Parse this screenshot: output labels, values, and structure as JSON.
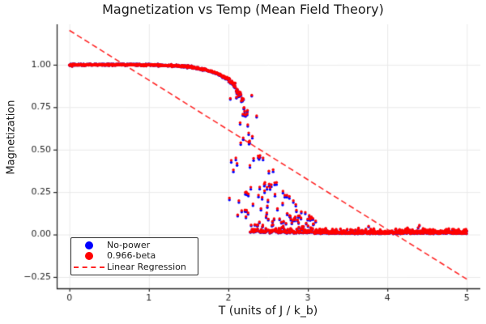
{
  "chart_data": {
    "type": "scatter",
    "title": "Magnetization vs Temp (Mean Field Theory)",
    "xlabel": "T (units of J / k_b)",
    "ylabel": "Magnetization",
    "xlim": [
      -0.16,
      5.17
    ],
    "ylim": [
      -0.317,
      1.238
    ],
    "grid": true,
    "grid_color": "#e9e9e9",
    "spine_color": "#262626",
    "tick_label_color": "#262626",
    "xticks": [
      {
        "v": 0,
        "label": "0"
      },
      {
        "v": 1,
        "label": "1"
      },
      {
        "v": 2,
        "label": "2"
      },
      {
        "v": 3,
        "label": "3"
      },
      {
        "v": 4,
        "label": "4"
      },
      {
        "v": 5,
        "label": "5"
      }
    ],
    "yticks": [
      {
        "v": -0.25,
        "label": "−0.25"
      },
      {
        "v": 0.0,
        "label": "0.00"
      },
      {
        "v": 0.25,
        "label": "0.25"
      },
      {
        "v": 0.5,
        "label": "0.50"
      },
      {
        "v": 0.75,
        "label": "0.75"
      },
      {
        "v": 1.0,
        "label": "1.00"
      }
    ],
    "series": [
      {
        "name": "No-power",
        "color": "#0000ff",
        "marker": "circle",
        "power": 1.0
      },
      {
        "name": "0.966-beta",
        "color": "#ff0000",
        "marker": "circle",
        "power": 0.966,
        "derived_from": "No-power"
      }
    ],
    "regression": {
      "label": "Linear Regression",
      "color": "#ff0000",
      "style": "dashed",
      "slope": -0.293,
      "intercept": 1.202,
      "x_range": [
        0,
        5
      ],
      "endpoints": [
        [
          0,
          1.202
        ],
        [
          5,
          -0.263
        ]
      ]
    },
    "model": {
      "t_min": 0,
      "t_max": 5,
      "n_points": 1300,
      "t_c": 2.269,
      "beta_exponent": 0.125,
      "seed": 42,
      "flat_noise_sd": 0.0032,
      "transition_start": 1.9,
      "excursion_prob": 0.5,
      "excursion_pow": 1.6,
      "envelope_amp": 0.95,
      "envelope_tau": 0.33,
      "bottom_cluster_frac": 0.55,
      "tail_start": 3.1,
      "tail_noise_sd": 0.012,
      "tail_spike_prob": 0.05,
      "m_clip": [
        0.0005,
        1.004
      ]
    }
  },
  "legend": {
    "items": [
      {
        "label": "No-power",
        "color": "#0000ff",
        "marker": "circle"
      },
      {
        "label": "0.966-beta",
        "color": "#ff0000",
        "marker": "circle"
      },
      {
        "label": "Linear Regression",
        "color": "#ff0000",
        "marker": "dashed-line"
      }
    ]
  }
}
